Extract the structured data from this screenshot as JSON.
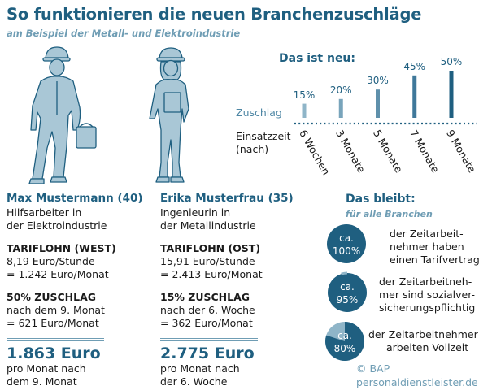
{
  "header": {
    "title": "So funktionieren die neuen Branchenzuschläge",
    "subtitle": "am Beispiel der Metall- und Elektroindustrie"
  },
  "colors": {
    "dark_blue": "#1f5f80",
    "mid_blue": "#4d86a4",
    "light_blue": "#8fb5c8",
    "figure_fill": "#a9c7d6"
  },
  "persons": [
    {
      "name": "Max Mustermann (40)",
      "job_lines": [
        "Hilfsarbeiter in",
        "der Elektroindustrie"
      ],
      "tarif_title": "TARIFLOHN (WEST)",
      "tarif_lines": [
        "8,19 Euro/Stunde",
        "= 1.242 Euro/Monat"
      ],
      "zuschlag_title": "50% ZUSCHLAG",
      "zuschlag_lines": [
        "nach dem 9. Monat",
        "= 621 Euro/Monat"
      ],
      "total": "1.863 Euro",
      "total_lines": [
        "pro Monat nach",
        "dem 9. Monat"
      ]
    },
    {
      "name": "Erika Musterfrau (35)",
      "job_lines": [
        "Ingenieurin in",
        "der Metallindustrie"
      ],
      "tarif_title": "TARIFLOHN (OST)",
      "tarif_lines": [
        "15,91 Euro/Stunde",
        "= 2.413 Euro/Monat"
      ],
      "zuschlag_title": "15% ZUSCHLAG",
      "zuschlag_lines": [
        "nach der 6. Woche",
        "= 362 Euro/Monat"
      ],
      "total": "2.775 Euro",
      "total_lines": [
        "pro Monat nach",
        "der 6. Woche"
      ]
    }
  ],
  "chart_data": {
    "type": "bar",
    "title": "Das ist neu:",
    "row_label_value": "Zuschlag",
    "row_label_axis": [
      "Einsatzzeit",
      "(nach)"
    ],
    "categories": [
      "6 Wochen",
      "3 Monate",
      "5 Monate",
      "7 Monate",
      "9 Monate"
    ],
    "values": [
      15,
      20,
      30,
      45,
      50
    ],
    "value_labels": [
      "15%",
      "20%",
      "30%",
      "45%",
      "50%"
    ],
    "ylim": [
      0,
      50
    ],
    "grid": false
  },
  "bleibt": {
    "title": "Das bleibt:",
    "subtitle": "für alle Branchen",
    "items": [
      {
        "value": "100%",
        "prefix": "ca.",
        "text_lines": [
          "der Zeitarbeit-",
          "nehmer haben",
          "einen Tarifvertrag"
        ]
      },
      {
        "value": "95%",
        "prefix": "ca.",
        "text_lines": [
          "der Zeitarbeitneh-",
          "mer sind sozialver-",
          "sicherungspflichtig"
        ]
      },
      {
        "value": "80%",
        "prefix": "ca.",
        "text_lines": [
          "der Zeitarbeitnehmer",
          "arbeiten Vollzeit"
        ]
      }
    ]
  },
  "credit": {
    "source": "© BAP",
    "site": "personaldienstleister.de"
  }
}
